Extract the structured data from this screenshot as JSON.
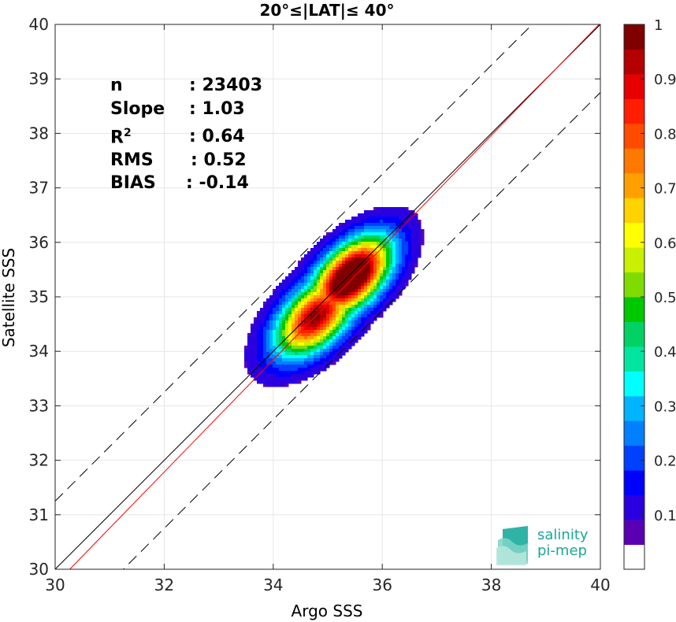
{
  "chart_data": {
    "type": "density_contour",
    "title": "20°≤|LAT|≤ 40°",
    "xlabel": "Argo SSS",
    "ylabel": "Satellite SSS",
    "xlim": [
      30,
      40
    ],
    "ylim": [
      30,
      40
    ],
    "xticks": [
      "30",
      "32",
      "34",
      "36",
      "38",
      "40"
    ],
    "yticks": [
      "30",
      "31",
      "32",
      "33",
      "34",
      "35",
      "36",
      "37",
      "38",
      "39",
      "40"
    ],
    "grid": true,
    "reference_lines": {
      "one_to_one": {
        "slope": 1,
        "intercept": 0,
        "color": "#000000"
      },
      "regression": {
        "slope": 1.03,
        "intercept": -1.176,
        "color": "#ff0000"
      },
      "offset_plus": {
        "slope": 1,
        "intercept": 1.25,
        "style": "dashed"
      },
      "offset_minus": {
        "slope": 1,
        "intercept": -1.25,
        "style": "dashed"
      }
    },
    "density_peaks": [
      {
        "x": 35.45,
        "y": 35.4,
        "level": 1.0
      },
      {
        "x": 34.75,
        "y": 34.6,
        "level": 0.75
      }
    ],
    "colorbar": {
      "ticks": [
        "0.1",
        "0.2",
        "0.3",
        "0.4",
        "0.5",
        "0.6",
        "0.7",
        "0.8",
        "0.9",
        "1"
      ],
      "colors": [
        "#ffffff",
        "#5a00b4",
        "#2b00e0",
        "#0000ff",
        "#0040ff",
        "#0080ff",
        "#00b4ff",
        "#00ffff",
        "#00e6a0",
        "#00d264",
        "#00c800",
        "#80dc00",
        "#c8f000",
        "#ffff00",
        "#ffd200",
        "#ffa000",
        "#ff7800",
        "#ff4b00",
        "#ff1e00",
        "#e60000",
        "#b40000",
        "#800000"
      ]
    },
    "stats": [
      {
        "key": "n",
        "value": ": 23403"
      },
      {
        "key": "Slope",
        "value": ": 1.03"
      },
      {
        "key": "R",
        "sup": "2",
        "value": ": 0.64"
      },
      {
        "key": "RMS",
        "value": ": 0.52"
      },
      {
        "key": "BIAS",
        "value": ": -0.14"
      }
    ]
  },
  "logo": {
    "line1": "salinity",
    "line2": "pi-mep"
  }
}
